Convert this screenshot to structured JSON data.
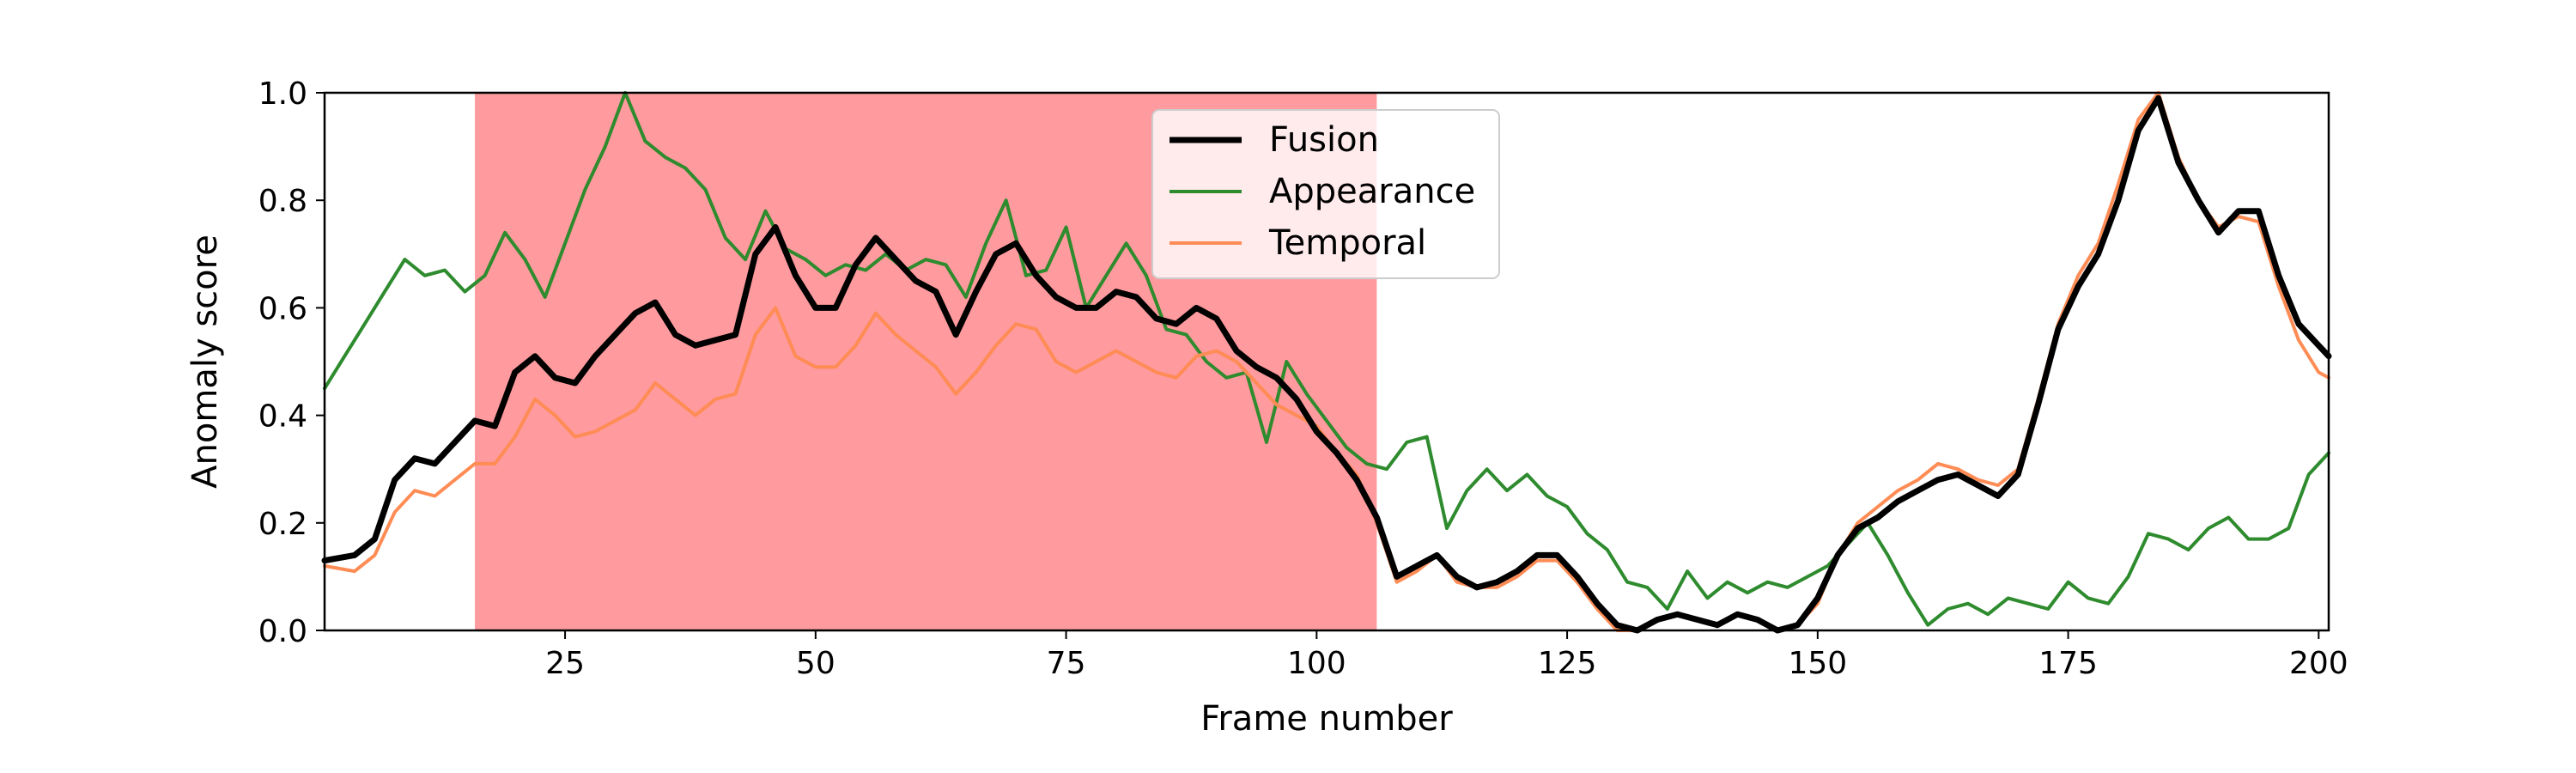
{
  "chart_data": {
    "type": "line",
    "title": "",
    "xlabel": "Frame number",
    "ylabel": "Anomaly score",
    "xlim": [
      1,
      201
    ],
    "ylim": [
      0,
      1
    ],
    "xticks": [
      25,
      50,
      75,
      100,
      125,
      150,
      175,
      200
    ],
    "yticks": [
      0.0,
      0.2,
      0.4,
      0.6,
      0.8,
      1.0
    ],
    "xtick_labels": [
      "25",
      "50",
      "75",
      "100",
      "125",
      "150",
      "175",
      "200"
    ],
    "ytick_labels": [
      "0.0",
      "0.2",
      "0.4",
      "0.6",
      "0.8",
      "1.0"
    ],
    "grid": false,
    "legend_position": "top-center",
    "highlight_region": {
      "x_start": 16,
      "x_end": 106,
      "color": "#ff9a9e"
    },
    "series": [
      {
        "name": "Fusion",
        "color": "#000000",
        "points": [
          [
            1,
            0.13
          ],
          [
            4,
            0.14
          ],
          [
            6,
            0.17
          ],
          [
            8,
            0.28
          ],
          [
            10,
            0.32
          ],
          [
            12,
            0.31
          ],
          [
            14,
            0.35
          ],
          [
            16,
            0.39
          ],
          [
            18,
            0.38
          ],
          [
            20,
            0.48
          ],
          [
            22,
            0.51
          ],
          [
            24,
            0.47
          ],
          [
            26,
            0.46
          ],
          [
            28,
            0.51
          ],
          [
            30,
            0.55
          ],
          [
            32,
            0.59
          ],
          [
            34,
            0.61
          ],
          [
            36,
            0.55
          ],
          [
            38,
            0.53
          ],
          [
            40,
            0.54
          ],
          [
            42,
            0.55
          ],
          [
            44,
            0.7
          ],
          [
            46,
            0.75
          ],
          [
            48,
            0.66
          ],
          [
            50,
            0.6
          ],
          [
            52,
            0.6
          ],
          [
            54,
            0.68
          ],
          [
            56,
            0.73
          ],
          [
            58,
            0.69
          ],
          [
            60,
            0.65
          ],
          [
            62,
            0.63
          ],
          [
            64,
            0.55
          ],
          [
            66,
            0.63
          ],
          [
            68,
            0.7
          ],
          [
            70,
            0.72
          ],
          [
            72,
            0.66
          ],
          [
            74,
            0.62
          ],
          [
            76,
            0.6
          ],
          [
            78,
            0.6
          ],
          [
            80,
            0.63
          ],
          [
            82,
            0.62
          ],
          [
            84,
            0.58
          ],
          [
            86,
            0.57
          ],
          [
            88,
            0.6
          ],
          [
            90,
            0.58
          ],
          [
            92,
            0.52
          ],
          [
            94,
            0.49
          ],
          [
            96,
            0.47
          ],
          [
            98,
            0.43
          ],
          [
            100,
            0.37
          ],
          [
            102,
            0.33
          ],
          [
            104,
            0.28
          ],
          [
            106,
            0.21
          ],
          [
            108,
            0.1
          ],
          [
            110,
            0.12
          ],
          [
            112,
            0.14
          ],
          [
            114,
            0.1
          ],
          [
            116,
            0.08
          ],
          [
            118,
            0.09
          ],
          [
            120,
            0.11
          ],
          [
            122,
            0.14
          ],
          [
            124,
            0.14
          ],
          [
            126,
            0.1
          ],
          [
            128,
            0.05
          ],
          [
            130,
            0.01
          ],
          [
            132,
            0.0
          ],
          [
            134,
            0.02
          ],
          [
            136,
            0.03
          ],
          [
            138,
            0.02
          ],
          [
            140,
            0.01
          ],
          [
            142,
            0.03
          ],
          [
            144,
            0.02
          ],
          [
            146,
            0.0
          ],
          [
            148,
            0.01
          ],
          [
            150,
            0.06
          ],
          [
            152,
            0.14
          ],
          [
            154,
            0.19
          ],
          [
            156,
            0.21
          ],
          [
            158,
            0.24
          ],
          [
            160,
            0.26
          ],
          [
            162,
            0.28
          ],
          [
            164,
            0.29
          ],
          [
            166,
            0.27
          ],
          [
            168,
            0.25
          ],
          [
            170,
            0.29
          ],
          [
            172,
            0.42
          ],
          [
            174,
            0.56
          ],
          [
            176,
            0.64
          ],
          [
            178,
            0.7
          ],
          [
            180,
            0.8
          ],
          [
            182,
            0.93
          ],
          [
            184,
            0.99
          ],
          [
            186,
            0.87
          ],
          [
            188,
            0.8
          ],
          [
            190,
            0.74
          ],
          [
            192,
            0.78
          ],
          [
            194,
            0.78
          ],
          [
            196,
            0.66
          ],
          [
            198,
            0.57
          ],
          [
            200,
            0.53
          ],
          [
            201,
            0.51
          ]
        ]
      },
      {
        "name": "Appearance",
        "color": "#2e8b2e",
        "points": [
          [
            1,
            0.45
          ],
          [
            3,
            0.51
          ],
          [
            5,
            0.57
          ],
          [
            7,
            0.63
          ],
          [
            9,
            0.69
          ],
          [
            11,
            0.66
          ],
          [
            13,
            0.67
          ],
          [
            15,
            0.63
          ],
          [
            17,
            0.66
          ],
          [
            19,
            0.74
          ],
          [
            21,
            0.69
          ],
          [
            23,
            0.62
          ],
          [
            25,
            0.72
          ],
          [
            27,
            0.82
          ],
          [
            29,
            0.9
          ],
          [
            31,
            1.0
          ],
          [
            33,
            0.91
          ],
          [
            35,
            0.88
          ],
          [
            37,
            0.86
          ],
          [
            39,
            0.82
          ],
          [
            41,
            0.73
          ],
          [
            43,
            0.69
          ],
          [
            45,
            0.78
          ],
          [
            47,
            0.71
          ],
          [
            49,
            0.69
          ],
          [
            51,
            0.66
          ],
          [
            53,
            0.68
          ],
          [
            55,
            0.67
          ],
          [
            57,
            0.7
          ],
          [
            59,
            0.67
          ],
          [
            61,
            0.69
          ],
          [
            63,
            0.68
          ],
          [
            65,
            0.62
          ],
          [
            67,
            0.72
          ],
          [
            69,
            0.8
          ],
          [
            71,
            0.66
          ],
          [
            73,
            0.67
          ],
          [
            75,
            0.75
          ],
          [
            77,
            0.6
          ],
          [
            79,
            0.66
          ],
          [
            81,
            0.72
          ],
          [
            83,
            0.66
          ],
          [
            85,
            0.56
          ],
          [
            87,
            0.55
          ],
          [
            89,
            0.5
          ],
          [
            91,
            0.47
          ],
          [
            93,
            0.48
          ],
          [
            95,
            0.35
          ],
          [
            97,
            0.5
          ],
          [
            99,
            0.44
          ],
          [
            101,
            0.39
          ],
          [
            103,
            0.34
          ],
          [
            105,
            0.31
          ],
          [
            107,
            0.3
          ],
          [
            109,
            0.35
          ],
          [
            111,
            0.36
          ],
          [
            113,
            0.19
          ],
          [
            115,
            0.26
          ],
          [
            117,
            0.3
          ],
          [
            119,
            0.26
          ],
          [
            121,
            0.29
          ],
          [
            123,
            0.25
          ],
          [
            125,
            0.23
          ],
          [
            127,
            0.18
          ],
          [
            129,
            0.15
          ],
          [
            131,
            0.09
          ],
          [
            133,
            0.08
          ],
          [
            135,
            0.04
          ],
          [
            137,
            0.11
          ],
          [
            139,
            0.06
          ],
          [
            141,
            0.09
          ],
          [
            143,
            0.07
          ],
          [
            145,
            0.09
          ],
          [
            147,
            0.08
          ],
          [
            149,
            0.1
          ],
          [
            151,
            0.12
          ],
          [
            153,
            0.16
          ],
          [
            155,
            0.2
          ],
          [
            157,
            0.14
          ],
          [
            159,
            0.07
          ],
          [
            161,
            0.01
          ],
          [
            163,
            0.04
          ],
          [
            165,
            0.05
          ],
          [
            167,
            0.03
          ],
          [
            169,
            0.06
          ],
          [
            171,
            0.05
          ],
          [
            173,
            0.04
          ],
          [
            175,
            0.09
          ],
          [
            177,
            0.06
          ],
          [
            179,
            0.05
          ],
          [
            181,
            0.1
          ],
          [
            183,
            0.18
          ],
          [
            185,
            0.17
          ],
          [
            187,
            0.15
          ],
          [
            189,
            0.19
          ],
          [
            191,
            0.21
          ],
          [
            193,
            0.17
          ],
          [
            195,
            0.17
          ],
          [
            197,
            0.19
          ],
          [
            199,
            0.29
          ],
          [
            201,
            0.33
          ]
        ]
      },
      {
        "name": "Temporal",
        "color": "#ff8c55",
        "points": [
          [
            1,
            0.12
          ],
          [
            4,
            0.11
          ],
          [
            6,
            0.14
          ],
          [
            8,
            0.22
          ],
          [
            10,
            0.26
          ],
          [
            12,
            0.25
          ],
          [
            14,
            0.28
          ],
          [
            16,
            0.31
          ],
          [
            18,
            0.31
          ],
          [
            20,
            0.36
          ],
          [
            22,
            0.43
          ],
          [
            24,
            0.4
          ],
          [
            26,
            0.36
          ],
          [
            28,
            0.37
          ],
          [
            30,
            0.39
          ],
          [
            32,
            0.41
          ],
          [
            34,
            0.46
          ],
          [
            36,
            0.43
          ],
          [
            38,
            0.4
          ],
          [
            40,
            0.43
          ],
          [
            42,
            0.44
          ],
          [
            44,
            0.55
          ],
          [
            46,
            0.6
          ],
          [
            48,
            0.51
          ],
          [
            50,
            0.49
          ],
          [
            52,
            0.49
          ],
          [
            54,
            0.53
          ],
          [
            56,
            0.59
          ],
          [
            58,
            0.55
          ],
          [
            60,
            0.52
          ],
          [
            62,
            0.49
          ],
          [
            64,
            0.44
          ],
          [
            66,
            0.48
          ],
          [
            68,
            0.53
          ],
          [
            70,
            0.57
          ],
          [
            72,
            0.56
          ],
          [
            74,
            0.5
          ],
          [
            76,
            0.48
          ],
          [
            78,
            0.5
          ],
          [
            80,
            0.52
          ],
          [
            82,
            0.5
          ],
          [
            84,
            0.48
          ],
          [
            86,
            0.47
          ],
          [
            88,
            0.51
          ],
          [
            90,
            0.52
          ],
          [
            92,
            0.5
          ],
          [
            94,
            0.46
          ],
          [
            96,
            0.42
          ],
          [
            98,
            0.4
          ],
          [
            100,
            0.38
          ],
          [
            102,
            0.33
          ],
          [
            104,
            0.29
          ],
          [
            106,
            0.2
          ],
          [
            108,
            0.09
          ],
          [
            110,
            0.11
          ],
          [
            112,
            0.14
          ],
          [
            114,
            0.09
          ],
          [
            116,
            0.08
          ],
          [
            118,
            0.08
          ],
          [
            120,
            0.1
          ],
          [
            122,
            0.13
          ],
          [
            124,
            0.13
          ],
          [
            126,
            0.09
          ],
          [
            128,
            0.04
          ],
          [
            130,
            0.0
          ],
          [
            132,
            0.0
          ],
          [
            134,
            0.02
          ],
          [
            136,
            0.03
          ],
          [
            138,
            0.02
          ],
          [
            140,
            0.01
          ],
          [
            142,
            0.03
          ],
          [
            144,
            0.02
          ],
          [
            146,
            0.0
          ],
          [
            148,
            0.01
          ],
          [
            150,
            0.05
          ],
          [
            152,
            0.14
          ],
          [
            154,
            0.2
          ],
          [
            156,
            0.23
          ],
          [
            158,
            0.26
          ],
          [
            160,
            0.28
          ],
          [
            162,
            0.31
          ],
          [
            164,
            0.3
          ],
          [
            166,
            0.28
          ],
          [
            168,
            0.27
          ],
          [
            170,
            0.3
          ],
          [
            172,
            0.43
          ],
          [
            174,
            0.57
          ],
          [
            176,
            0.66
          ],
          [
            178,
            0.72
          ],
          [
            180,
            0.83
          ],
          [
            182,
            0.95
          ],
          [
            184,
            1.0
          ],
          [
            186,
            0.88
          ],
          [
            188,
            0.8
          ],
          [
            190,
            0.75
          ],
          [
            192,
            0.77
          ],
          [
            194,
            0.76
          ],
          [
            196,
            0.64
          ],
          [
            198,
            0.54
          ],
          [
            200,
            0.48
          ],
          [
            201,
            0.47
          ]
        ]
      }
    ]
  }
}
